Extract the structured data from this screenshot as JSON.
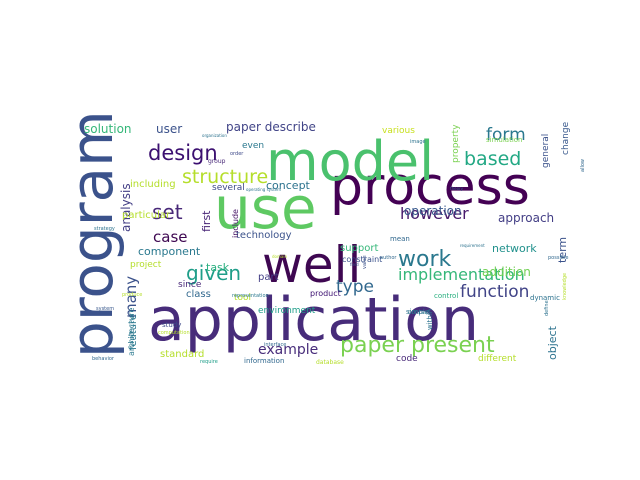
{
  "word_cloud": {
    "words": [
      {
        "text": "application",
        "color": "#472c7a"
      },
      {
        "text": "program",
        "color": "#3b528b"
      },
      {
        "text": "process",
        "color": "#440154"
      },
      {
        "text": "model",
        "color": "#4ac16d"
      },
      {
        "text": "use",
        "color": "#5ec962"
      },
      {
        "text": "well",
        "color": "#3e0751"
      },
      {
        "text": "paper present",
        "color": "#7ad151"
      },
      {
        "text": "given",
        "color": "#1f9e89"
      },
      {
        "text": "work",
        "color": "#2a788e"
      },
      {
        "text": "design",
        "color": "#3b0f70"
      },
      {
        "text": "structure",
        "color": "#b5de2b"
      },
      {
        "text": "set",
        "color": "#482878"
      },
      {
        "text": "based",
        "color": "#22a884"
      },
      {
        "text": "form",
        "color": "#2a788e"
      },
      {
        "text": "implementation",
        "color": "#35b779"
      },
      {
        "text": "function",
        "color": "#414487"
      },
      {
        "text": "however",
        "color": "#481a6c"
      },
      {
        "text": "many",
        "color": "#3b528b"
      },
      {
        "text": "case",
        "color": "#3e0751"
      },
      {
        "text": "type",
        "color": "#31688e"
      },
      {
        "text": "example",
        "color": "#472c7a"
      },
      {
        "text": "paper describe",
        "color": "#414487"
      },
      {
        "text": "solution",
        "color": "#35b779"
      },
      {
        "text": "user",
        "color": "#3b528b"
      },
      {
        "text": "analysis",
        "color": "#433e85"
      },
      {
        "text": "concept",
        "color": "#2c728e"
      },
      {
        "text": "component",
        "color": "#2a788e"
      },
      {
        "text": "task",
        "color": "#29af7f"
      },
      {
        "text": "first",
        "color": "#482576"
      },
      {
        "text": "technology",
        "color": "#3b528b"
      },
      {
        "text": "operation",
        "color": "#38588c"
      },
      {
        "text": "approach",
        "color": "#433e85"
      },
      {
        "text": "network",
        "color": "#21918c"
      },
      {
        "text": "addition",
        "color": "#73d056"
      },
      {
        "text": "object",
        "color": "#2c728e"
      },
      {
        "text": "term",
        "color": "#3b528b"
      },
      {
        "text": "including",
        "color": "#b5de2b"
      },
      {
        "text": "particular",
        "color": "#b5de2b"
      },
      {
        "text": "feature",
        "color": "#2a788e"
      },
      {
        "text": "project",
        "color": "#b5de2b"
      },
      {
        "text": "class",
        "color": "#31688e"
      },
      {
        "text": "standard",
        "color": "#b5de2b"
      },
      {
        "text": "environment",
        "color": "#1f9e89"
      },
      {
        "text": "part",
        "color": "#433e85"
      },
      {
        "text": "support",
        "color": "#35b779"
      },
      {
        "text": "various",
        "color": "#c8e020"
      },
      {
        "text": "property",
        "color": "#7ad151"
      },
      {
        "text": "general",
        "color": "#3b528b"
      },
      {
        "text": "change",
        "color": "#38588c"
      },
      {
        "text": "simulation",
        "color": "#7ad151"
      },
      {
        "text": "even",
        "color": "#2a788e"
      },
      {
        "text": "several",
        "color": "#3e4989"
      },
      {
        "text": "since",
        "color": "#482878"
      },
      {
        "text": "tool",
        "color": "#b5de2b"
      },
      {
        "text": "include",
        "color": "#471365"
      },
      {
        "text": "constraint",
        "color": "#3b528b"
      },
      {
        "text": "control",
        "color": "#29af7f"
      },
      {
        "text": "simple",
        "color": "#2c728e"
      },
      {
        "text": "within",
        "color": "#2c728e"
      },
      {
        "text": "different",
        "color": "#b5de2b"
      },
      {
        "text": "code",
        "color": "#482878"
      },
      {
        "text": "information",
        "color": "#31688e"
      },
      {
        "text": "database",
        "color": "#b5de2b"
      },
      {
        "text": "product",
        "color": "#3b0f70"
      },
      {
        "text": "mean",
        "color": "#31688e"
      },
      {
        "text": "context",
        "color": "#2c728e"
      },
      {
        "text": "architecture",
        "color": "#2a788e"
      },
      {
        "text": "study",
        "color": "#3e4989"
      },
      {
        "text": "dynamic",
        "color": "#2c728e"
      },
      {
        "text": "interface",
        "color": "#31688e"
      },
      {
        "text": "require",
        "color": "#1f9e89"
      },
      {
        "text": "computation",
        "color": "#b5de2b"
      },
      {
        "text": "organization",
        "color": "#2c728e"
      },
      {
        "text": "group",
        "color": "#482878"
      },
      {
        "text": "order",
        "color": "#3e4989"
      },
      {
        "text": "image",
        "color": "#2c728e"
      },
      {
        "text": "theory",
        "color": "#31688e"
      },
      {
        "text": "operating system",
        "color": "#2c728e"
      },
      {
        "text": "representation",
        "color": "#2a788e"
      },
      {
        "text": "strategy",
        "color": "#2c728e"
      },
      {
        "text": "value",
        "color": "#3b528b"
      },
      {
        "text": "author",
        "color": "#31688e"
      },
      {
        "text": "possible",
        "color": "#31688e"
      },
      {
        "text": "requirement",
        "color": "#2c728e"
      },
      {
        "text": "behavior",
        "color": "#31688e"
      },
      {
        "text": "allow",
        "color": "#31688e"
      },
      {
        "text": "knowledge",
        "color": "#b5de2b"
      },
      {
        "text": "system",
        "color": "#38588c"
      },
      {
        "text": "produce",
        "color": "#b5de2b"
      },
      {
        "text": "field",
        "color": "#3b528b"
      },
      {
        "text": "define",
        "color": "#2c728e"
      },
      {
        "text": "domain",
        "color": "#b5de2b"
      }
    ]
  }
}
